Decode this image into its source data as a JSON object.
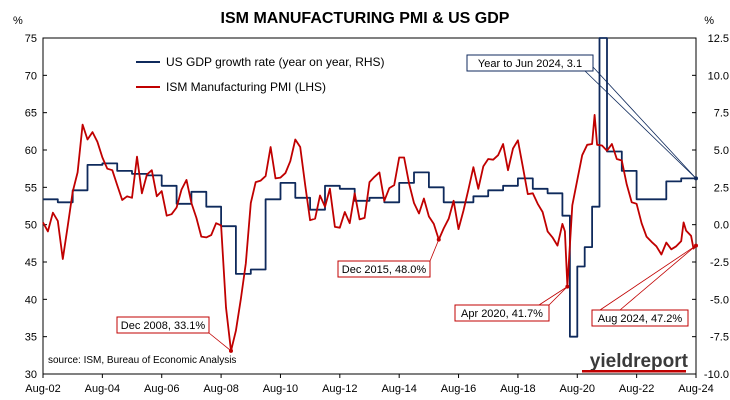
{
  "chart_data": {
    "type": "line",
    "title": "ISM MANUFACTURING PMI & US GDP",
    "left_axis_unit": "%",
    "right_axis_unit": "%",
    "ylim_left": [
      30,
      75
    ],
    "ylim_right": [
      -10,
      12.5
    ],
    "left_ticks": [
      "75",
      "70",
      "65",
      "60",
      "55",
      "50",
      "45",
      "40",
      "35",
      "30"
    ],
    "right_ticks": [
      "12.5",
      "10.0",
      "7.5",
      "5.0",
      "2.5",
      "0.0",
      "-2.5",
      "-5.0",
      "-7.5",
      "-10.0"
    ],
    "x_tick_labels": [
      "Aug-02",
      "Aug-04",
      "Aug-06",
      "Aug-08",
      "Aug-10",
      "Aug-12",
      "Aug-14",
      "Aug-16",
      "Aug-18",
      "Aug-20",
      "Aug-22",
      "Aug-24"
    ],
    "x_range": [
      "Aug-02",
      "Aug-24"
    ],
    "grid": false,
    "legend_position": "top-left",
    "source": "source: ISM, Bureau of Economic Analysis",
    "logo_text": "yieldreport",
    "series": [
      {
        "name": "US GDP growth rate (year on year, RHS)",
        "axis": "right",
        "color": "#0f2a5c",
        "points": [
          [
            "Aug-02",
            1.7
          ],
          [
            "Feb-03",
            1.5
          ],
          [
            "Aug-03",
            2.3
          ],
          [
            "Feb-04",
            4.0
          ],
          [
            "Aug-04",
            4.1
          ],
          [
            "Feb-05",
            3.6
          ],
          [
            "Aug-05",
            3.4
          ],
          [
            "Feb-06",
            3.3
          ],
          [
            "Aug-06",
            2.6
          ],
          [
            "Feb-07",
            1.4
          ],
          [
            "Aug-07",
            2.2
          ],
          [
            "Feb-08",
            1.2
          ],
          [
            "Aug-08",
            -0.1
          ],
          [
            "Feb-09",
            -3.3
          ],
          [
            "Aug-09",
            -3.0
          ],
          [
            "Feb-10",
            1.7
          ],
          [
            "Aug-10",
            2.8
          ],
          [
            "Feb-11",
            1.8
          ],
          [
            "Aug-11",
            1.0
          ],
          [
            "Feb-12",
            2.6
          ],
          [
            "Aug-12",
            2.4
          ],
          [
            "Feb-13",
            1.6
          ],
          [
            "Aug-13",
            1.8
          ],
          [
            "Feb-14",
            1.5
          ],
          [
            "Aug-14",
            2.8
          ],
          [
            "Feb-15",
            3.5
          ],
          [
            "Aug-15",
            2.5
          ],
          [
            "Feb-16",
            1.5
          ],
          [
            "Aug-16",
            1.5
          ],
          [
            "Feb-17",
            1.9
          ],
          [
            "Aug-17",
            2.3
          ],
          [
            "Feb-18",
            2.6
          ],
          [
            "Aug-18",
            3.1
          ],
          [
            "Feb-19",
            2.4
          ],
          [
            "Aug-19",
            2.1
          ],
          [
            "Feb-20",
            0.6
          ],
          [
            "May-20",
            -7.5
          ],
          [
            "Aug-20",
            -2.8
          ],
          [
            "Nov-20",
            -1.5
          ],
          [
            "Feb-21",
            1.2
          ],
          [
            "May-21",
            12.5
          ],
          [
            "Aug-21",
            4.9
          ],
          [
            "Feb-22",
            3.6
          ],
          [
            "Aug-22",
            1.7
          ],
          [
            "Feb-23",
            1.7
          ],
          [
            "Aug-23",
            2.9
          ],
          [
            "Feb-24",
            3.1
          ],
          [
            "Aug-24",
            3.1
          ]
        ]
      },
      {
        "name": "ISM Manufacturing PMI (LHS)",
        "axis": "left",
        "color": "#c00000",
        "points": [
          [
            "Aug-02",
            50.3
          ],
          [
            "Oct-02",
            49.1
          ],
          [
            "Dec-02",
            51.6
          ],
          [
            "Feb-03",
            50.5
          ],
          [
            "Apr-03",
            45.4
          ],
          [
            "Jun-03",
            49.8
          ],
          [
            "Aug-03",
            54.4
          ],
          [
            "Oct-03",
            57.0
          ],
          [
            "Dec-03",
            63.4
          ],
          [
            "Feb-04",
            61.4
          ],
          [
            "Apr-04",
            62.4
          ],
          [
            "Jun-04",
            61.1
          ],
          [
            "Aug-04",
            59.0
          ],
          [
            "Oct-04",
            57.5
          ],
          [
            "Dec-04",
            57.3
          ],
          [
            "Feb-05",
            55.3
          ],
          [
            "Apr-05",
            53.3
          ],
          [
            "Jun-05",
            53.8
          ],
          [
            "Aug-05",
            53.6
          ],
          [
            "Oct-05",
            59.1
          ],
          [
            "Dec-05",
            54.2
          ],
          [
            "Feb-06",
            56.7
          ],
          [
            "Apr-06",
            57.3
          ],
          [
            "Jun-06",
            53.8
          ],
          [
            "Aug-06",
            54.5
          ],
          [
            "Oct-06",
            51.2
          ],
          [
            "Dec-06",
            51.4
          ],
          [
            "Feb-07",
            52.3
          ],
          [
            "Apr-07",
            54.7
          ],
          [
            "Jun-07",
            56.0
          ],
          [
            "Aug-07",
            52.9
          ],
          [
            "Oct-07",
            50.9
          ],
          [
            "Dec-07",
            48.4
          ],
          [
            "Feb-08",
            48.3
          ],
          [
            "Apr-08",
            48.6
          ],
          [
            "Jun-08",
            50.2
          ],
          [
            "Aug-08",
            49.9
          ],
          [
            "Oct-08",
            38.9
          ],
          [
            "Dec-08",
            33.1
          ],
          [
            "Feb-09",
            35.8
          ],
          [
            "Apr-09",
            40.1
          ],
          [
            "Jun-09",
            44.8
          ],
          [
            "Aug-09",
            52.9
          ],
          [
            "Oct-09",
            55.7
          ],
          [
            "Dec-09",
            55.9
          ],
          [
            "Feb-10",
            56.5
          ],
          [
            "Apr-10",
            60.4
          ],
          [
            "Jun-10",
            56.2
          ],
          [
            "Aug-10",
            56.3
          ],
          [
            "Oct-10",
            56.9
          ],
          [
            "Dec-10",
            58.5
          ],
          [
            "Feb-11",
            61.4
          ],
          [
            "Apr-11",
            60.4
          ],
          [
            "Jun-11",
            55.3
          ],
          [
            "Aug-11",
            50.6
          ],
          [
            "Oct-11",
            50.8
          ],
          [
            "Dec-11",
            53.9
          ],
          [
            "Feb-12",
            52.4
          ],
          [
            "Apr-12",
            54.8
          ],
          [
            "Jun-12",
            49.7
          ],
          [
            "Aug-12",
            49.6
          ],
          [
            "Oct-12",
            51.7
          ],
          [
            "Dec-12",
            50.2
          ],
          [
            "Feb-13",
            54.2
          ],
          [
            "Apr-13",
            50.7
          ],
          [
            "Jun-13",
            50.9
          ],
          [
            "Aug-13",
            55.7
          ],
          [
            "Oct-13",
            56.4
          ],
          [
            "Dec-13",
            57.0
          ],
          [
            "Feb-14",
            53.2
          ],
          [
            "Apr-14",
            54.9
          ],
          [
            "Jun-14",
            55.3
          ],
          [
            "Aug-14",
            59.0
          ],
          [
            "Oct-14",
            59.0
          ],
          [
            "Dec-14",
            55.5
          ],
          [
            "Feb-15",
            52.9
          ],
          [
            "Apr-15",
            51.5
          ],
          [
            "Jun-15",
            53.5
          ],
          [
            "Aug-15",
            51.1
          ],
          [
            "Oct-15",
            50.1
          ],
          [
            "Dec-15",
            48.0
          ],
          [
            "Feb-16",
            49.5
          ],
          [
            "Apr-16",
            50.8
          ],
          [
            "Jun-16",
            53.2
          ],
          [
            "Aug-16",
            49.4
          ],
          [
            "Oct-16",
            51.9
          ],
          [
            "Dec-16",
            54.7
          ],
          [
            "Feb-17",
            57.7
          ],
          [
            "Apr-17",
            54.8
          ],
          [
            "Jun-17",
            57.8
          ],
          [
            "Aug-17",
            58.8
          ],
          [
            "Oct-17",
            58.7
          ],
          [
            "Dec-17",
            59.3
          ],
          [
            "Feb-18",
            60.8
          ],
          [
            "Apr-18",
            57.3
          ],
          [
            "Jun-18",
            60.2
          ],
          [
            "Aug-18",
            61.3
          ],
          [
            "Oct-18",
            57.7
          ],
          [
            "Dec-18",
            54.1
          ],
          [
            "Feb-19",
            54.2
          ],
          [
            "Apr-19",
            52.8
          ],
          [
            "Jun-19",
            51.7
          ],
          [
            "Aug-19",
            49.1
          ],
          [
            "Oct-19",
            48.3
          ],
          [
            "Dec-19",
            47.2
          ],
          [
            "Feb-20",
            50.1
          ],
          [
            "Mar-20",
            49.1
          ],
          [
            "Apr-20",
            41.7
          ],
          [
            "Jun-20",
            52.6
          ],
          [
            "Aug-20",
            56.0
          ],
          [
            "Oct-20",
            59.3
          ],
          [
            "Dec-20",
            60.7
          ],
          [
            "Feb-21",
            60.8
          ],
          [
            "Mar-21",
            64.7
          ],
          [
            "Apr-21",
            60.7
          ],
          [
            "Jun-21",
            60.6
          ],
          [
            "Aug-21",
            59.9
          ],
          [
            "Oct-21",
            60.8
          ],
          [
            "Dec-21",
            58.8
          ],
          [
            "Feb-22",
            58.6
          ],
          [
            "Apr-22",
            55.4
          ],
          [
            "Jun-22",
            53.0
          ],
          [
            "Aug-22",
            52.8
          ],
          [
            "Oct-22",
            50.2
          ],
          [
            "Dec-22",
            48.4
          ],
          [
            "Feb-23",
            47.7
          ],
          [
            "Apr-23",
            47.1
          ],
          [
            "Jun-23",
            46.0
          ],
          [
            "Aug-23",
            47.6
          ],
          [
            "Oct-23",
            46.7
          ],
          [
            "Dec-23",
            47.1
          ],
          [
            "Feb-24",
            47.8
          ],
          [
            "Mar-24",
            50.3
          ],
          [
            "Apr-24",
            49.2
          ],
          [
            "Jun-24",
            48.5
          ],
          [
            "Jul-24",
            46.8
          ],
          [
            "Aug-24",
            47.2
          ]
        ]
      }
    ],
    "annotations": [
      {
        "text": "Year to Jun 2024, 3.1",
        "series": 0,
        "x": "Aug-24",
        "y": 3.1,
        "box_color": "#0f2a5c"
      },
      {
        "text": "Dec 2008, 33.1%",
        "series": 1,
        "x": "Dec-08",
        "y": 33.1,
        "box_color": "#c00000"
      },
      {
        "text": "Dec 2015, 48.0%",
        "series": 1,
        "x": "Dec-15",
        "y": 48.0,
        "box_color": "#c00000"
      },
      {
        "text": "Apr 2020, 41.7%",
        "series": 1,
        "x": "Apr-20",
        "y": 41.7,
        "box_color": "#c00000"
      },
      {
        "text": "Aug 2024, 47.2%",
        "series": 1,
        "x": "Aug-24",
        "y": 47.2,
        "box_color": "#c00000"
      }
    ]
  }
}
